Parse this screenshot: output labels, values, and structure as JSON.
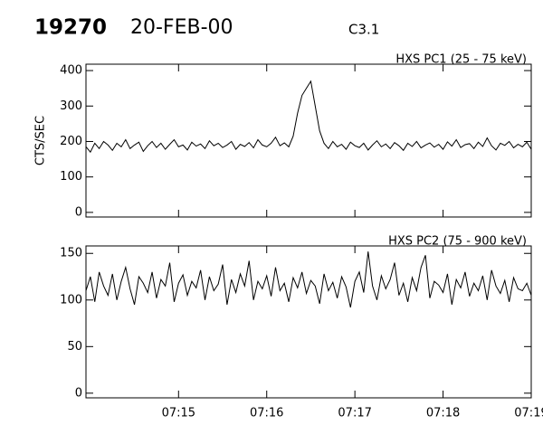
{
  "header": {
    "id": "19270",
    "date": "20-FEB-00",
    "class": "C3.1"
  },
  "chart_data": [
    {
      "type": "line",
      "title": "HXS PC1 (25 - 75 keV)",
      "ylabel": "CTS/SEC",
      "color": "#000000",
      "x": [
        13.95,
        14,
        14.05,
        14.1,
        14.15,
        14.2,
        14.25,
        14.3,
        14.35,
        14.4,
        14.45,
        14.5,
        14.55,
        14.6,
        14.65,
        14.7,
        14.75,
        14.8,
        14.85,
        14.9,
        14.95,
        15,
        15.05,
        15.1,
        15.15,
        15.2,
        15.25,
        15.3,
        15.35,
        15.4,
        15.45,
        15.5,
        15.55,
        15.6,
        15.65,
        15.7,
        15.75,
        15.8,
        15.85,
        15.9,
        15.95,
        16,
        16.05,
        16.1,
        16.15,
        16.2,
        16.25,
        16.3,
        16.35,
        16.4,
        16.45,
        16.5,
        16.55,
        16.6,
        16.65,
        16.7,
        16.75,
        16.8,
        16.85,
        16.9,
        16.95,
        17,
        17.05,
        17.1,
        17.15,
        17.2,
        17.25,
        17.3,
        17.35,
        17.4,
        17.45,
        17.5,
        17.55,
        17.6,
        17.65,
        17.7,
        17.75,
        17.8,
        17.85,
        17.9,
        17.95,
        18,
        18.05,
        18.1,
        18.15,
        18.2,
        18.25,
        18.3,
        18.35,
        18.4,
        18.45,
        18.5,
        18.55,
        18.6,
        18.65,
        18.7,
        18.75,
        18.8,
        18.85,
        18.9,
        18.95,
        19
      ],
      "values": [
        185,
        170,
        195,
        180,
        200,
        190,
        175,
        195,
        185,
        205,
        180,
        190,
        198,
        172,
        188,
        200,
        183,
        195,
        178,
        192,
        205,
        185,
        190,
        176,
        198,
        187,
        193,
        180,
        202,
        188,
        195,
        183,
        190,
        200,
        178,
        192,
        186,
        197,
        182,
        205,
        190,
        185,
        195,
        212,
        188,
        196,
        185,
        215,
        280,
        330,
        350,
        370,
        300,
        230,
        195,
        180,
        200,
        185,
        192,
        178,
        198,
        188,
        183,
        195,
        176,
        190,
        202,
        185,
        193,
        180,
        197,
        188,
        175,
        195,
        186,
        200,
        182,
        190,
        196,
        184,
        192,
        178,
        199,
        187,
        205,
        183,
        191,
        194,
        180,
        198,
        186,
        210,
        188,
        176,
        195,
        189,
        200,
        182,
        192,
        185,
        198,
        178
      ],
      "xlim": [
        13.95,
        19
      ],
      "xticks": [
        15,
        16,
        17,
        18,
        19
      ],
      "ylim": [
        -13,
        418
      ],
      "yticks": [
        0,
        100,
        200,
        300,
        400
      ]
    },
    {
      "type": "line",
      "title": "HXS PC2 (75 - 900 keV)",
      "color": "#000000",
      "x": [
        13.95,
        14,
        14.05,
        14.1,
        14.15,
        14.2,
        14.25,
        14.3,
        14.35,
        14.4,
        14.45,
        14.5,
        14.55,
        14.6,
        14.65,
        14.7,
        14.75,
        14.8,
        14.85,
        14.9,
        14.95,
        15,
        15.05,
        15.1,
        15.15,
        15.2,
        15.25,
        15.3,
        15.35,
        15.4,
        15.45,
        15.5,
        15.55,
        15.6,
        15.65,
        15.7,
        15.75,
        15.8,
        15.85,
        15.9,
        15.95,
        16,
        16.05,
        16.1,
        16.15,
        16.2,
        16.25,
        16.3,
        16.35,
        16.4,
        16.45,
        16.5,
        16.55,
        16.6,
        16.65,
        16.7,
        16.75,
        16.8,
        16.85,
        16.9,
        16.95,
        17,
        17.05,
        17.1,
        17.15,
        17.2,
        17.25,
        17.3,
        17.35,
        17.4,
        17.45,
        17.5,
        17.55,
        17.6,
        17.65,
        17.7,
        17.75,
        17.8,
        17.85,
        17.9,
        17.95,
        18,
        18.05,
        18.1,
        18.15,
        18.2,
        18.25,
        18.3,
        18.35,
        18.4,
        18.45,
        18.5,
        18.55,
        18.6,
        18.65,
        18.7,
        18.75,
        18.8,
        18.85,
        18.9,
        18.95,
        19
      ],
      "values": [
        110,
        125,
        98,
        130,
        115,
        105,
        128,
        100,
        120,
        135,
        112,
        95,
        125,
        118,
        108,
        130,
        102,
        122,
        115,
        140,
        98,
        118,
        127,
        105,
        120,
        113,
        132,
        100,
        125,
        110,
        117,
        138,
        95,
        122,
        108,
        128,
        115,
        142,
        100,
        120,
        112,
        126,
        104,
        135,
        110,
        118,
        98,
        124,
        113,
        130,
        107,
        121,
        115,
        96,
        128,
        110,
        119,
        102,
        125,
        114,
        92,
        120,
        130,
        108,
        152,
        115,
        100,
        126,
        112,
        122,
        140,
        105,
        118,
        98,
        124,
        110,
        135,
        148,
        102,
        120,
        116,
        108,
        128,
        95,
        122,
        113,
        130,
        104,
        118,
        110,
        126,
        100,
        132,
        115,
        107,
        121,
        98,
        124,
        112,
        110,
        118,
        105
      ],
      "xlim": [
        13.95,
        19
      ],
      "xticks": [
        {
          "value": 15,
          "label": "07:15"
        },
        {
          "value": 16,
          "label": "07:16"
        },
        {
          "value": 17,
          "label": "07:17"
        },
        {
          "value": 18,
          "label": "07:18"
        },
        {
          "value": 19,
          "label": "07:19"
        }
      ],
      "ylim": [
        -5,
        158
      ],
      "yticks": [
        0,
        50,
        100,
        150
      ]
    }
  ]
}
